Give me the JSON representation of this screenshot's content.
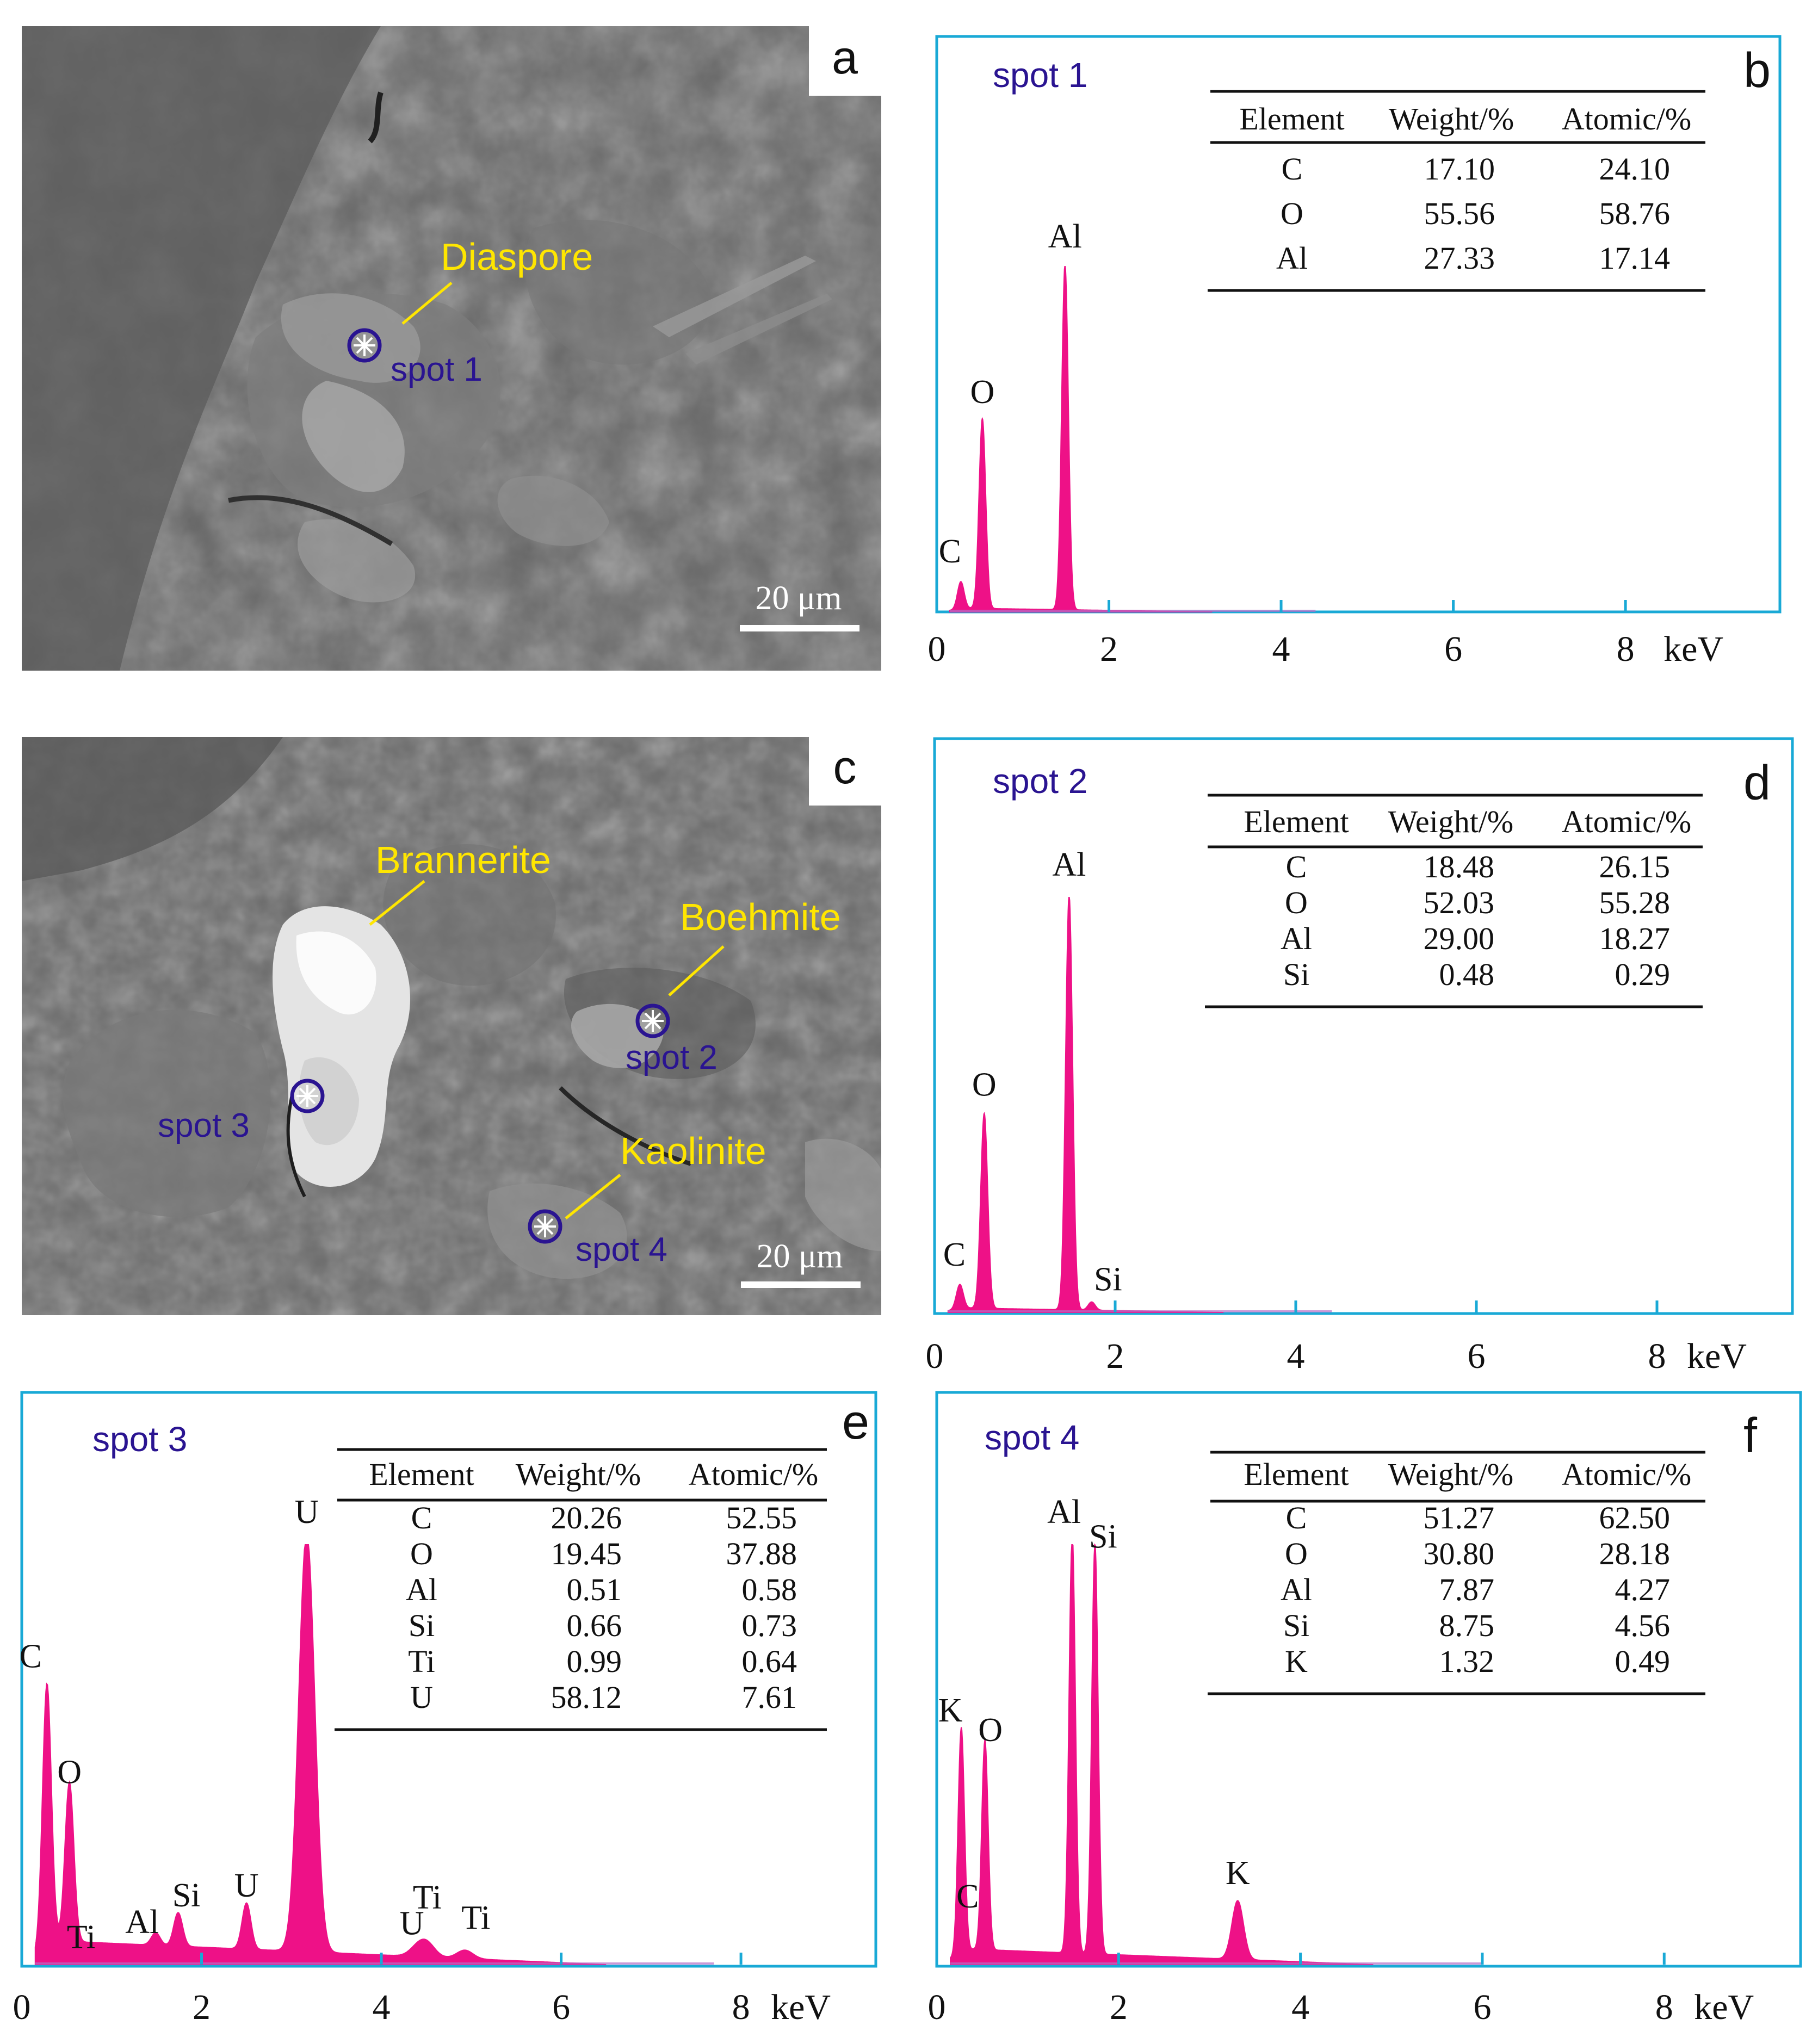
{
  "colors": {
    "spectrum_fill": "#ee1187",
    "frame": "#19a9d6",
    "spot_label": "#2a1491",
    "mineral_label": "#ffe600",
    "sem_background": "#6a6a6a"
  },
  "panels": {
    "a": {
      "letter": "a",
      "labels": [
        {
          "text": "Diaspore",
          "kind": "mineral"
        },
        {
          "text": "spot 1",
          "kind": "spot"
        }
      ],
      "scalebar": "20 μm"
    },
    "c": {
      "letter": "c",
      "labels": [
        {
          "text": "Brannerite",
          "kind": "mineral"
        },
        {
          "text": "Boehmite",
          "kind": "mineral"
        },
        {
          "text": "spot 2",
          "kind": "spot"
        },
        {
          "text": "spot 3",
          "kind": "spot"
        },
        {
          "text": "Kaolinite",
          "kind": "mineral"
        },
        {
          "text": "spot 4",
          "kind": "spot"
        }
      ],
      "scalebar": "20 μm"
    }
  },
  "chart_data": [
    {
      "panel": "b",
      "type": "area",
      "title": "spot 1",
      "xticks": [
        "0",
        "2",
        "4",
        "6",
        "8"
      ],
      "xunit": "keV",
      "xlim": [
        0,
        10
      ],
      "peaks": [
        {
          "label": "C",
          "x": 0.28,
          "y": 0.08
        },
        {
          "label": "O",
          "x": 0.53,
          "y": 0.55
        },
        {
          "label": "Al",
          "x": 1.49,
          "y": 1.0
        }
      ],
      "table": {
        "headers": [
          "Element",
          "Weight/%",
          "Atomic/%"
        ],
        "rows": [
          [
            "C",
            "17.10",
            "24.10"
          ],
          [
            "O",
            "55.56",
            "58.76"
          ],
          [
            "Al",
            "27.33",
            "17.14"
          ]
        ]
      }
    },
    {
      "panel": "d",
      "type": "area",
      "title": "spot 2",
      "xticks": [
        "0",
        "2",
        "4",
        "6",
        "8"
      ],
      "xunit": "keV",
      "xlim": [
        0,
        9.5
      ],
      "peaks": [
        {
          "label": "C",
          "x": 0.28,
          "y": 0.06
        },
        {
          "label": "O",
          "x": 0.55,
          "y": 0.47
        },
        {
          "label": "Al",
          "x": 1.49,
          "y": 1.0
        },
        {
          "label": "Si",
          "x": 1.74,
          "y": 0.02
        }
      ],
      "table": {
        "headers": [
          "Element",
          "Weight/%",
          "Atomic/%"
        ],
        "rows": [
          [
            "C",
            "18.48",
            "26.15"
          ],
          [
            "O",
            "52.03",
            "55.28"
          ],
          [
            "Al",
            "29.00",
            "18.27"
          ],
          [
            "Si",
            "0.48",
            "0.29"
          ]
        ]
      }
    },
    {
      "panel": "e",
      "type": "area",
      "title": "spot 3",
      "xticks": [
        "0",
        "2",
        "4",
        "6",
        "8"
      ],
      "xunit": "keV",
      "xlim": [
        0,
        9.5
      ],
      "peaks": [
        {
          "label": "C",
          "x": 0.28,
          "y": 0.63
        },
        {
          "label": "Ti",
          "x": 0.45,
          "y": 0.0
        },
        {
          "label": "O",
          "x": 0.53,
          "y": 0.38
        },
        {
          "label": "Al",
          "x": 1.49,
          "y": 0.03
        },
        {
          "label": "Si",
          "x": 1.74,
          "y": 0.08
        },
        {
          "label": "U",
          "x": 2.5,
          "y": 0.11
        },
        {
          "label": "U",
          "x": 3.17,
          "y": 1.0
        },
        {
          "label": "U",
          "x": 4.4,
          "y": 0.02
        },
        {
          "label": "Ti",
          "x": 4.51,
          "y": 0.03
        },
        {
          "label": "Ti",
          "x": 4.93,
          "y": 0.02
        }
      ],
      "table": {
        "headers": [
          "Element",
          "Weight/%",
          "Atomic/%"
        ],
        "rows": [
          [
            "C",
            "20.26",
            "52.55"
          ],
          [
            "O",
            "19.45",
            "37.88"
          ],
          [
            "Al",
            "0.51",
            "0.58"
          ],
          [
            "Si",
            "0.66",
            "0.73"
          ],
          [
            "Ti",
            "0.99",
            "0.64"
          ],
          [
            "U",
            "58.12",
            "7.61"
          ]
        ]
      }
    },
    {
      "panel": "f",
      "type": "area",
      "title": "spot 4",
      "xticks": [
        "0",
        "2",
        "4",
        "6",
        "8"
      ],
      "xunit": "keV",
      "xlim": [
        0,
        9.5
      ],
      "peaks": [
        {
          "label": "K",
          "x": 0.27,
          "y": 0.54
        },
        {
          "label": "C",
          "x": 0.28,
          "y": 0.0
        },
        {
          "label": "O",
          "x": 0.53,
          "y": 0.5
        },
        {
          "label": "Al",
          "x": 1.49,
          "y": 1.0
        },
        {
          "label": "Si",
          "x": 1.74,
          "y": 0.98
        },
        {
          "label": "K",
          "x": 3.31,
          "y": 0.14
        }
      ],
      "table": {
        "headers": [
          "Element",
          "Weight/%",
          "Atomic/%"
        ],
        "rows": [
          [
            "C",
            "51.27",
            "62.50"
          ],
          [
            "O",
            "30.80",
            "28.18"
          ],
          [
            "Al",
            "7.87",
            "4.27"
          ],
          [
            "Si",
            "8.75",
            "4.56"
          ],
          [
            "K",
            "1.32",
            "0.49"
          ]
        ]
      }
    }
  ]
}
